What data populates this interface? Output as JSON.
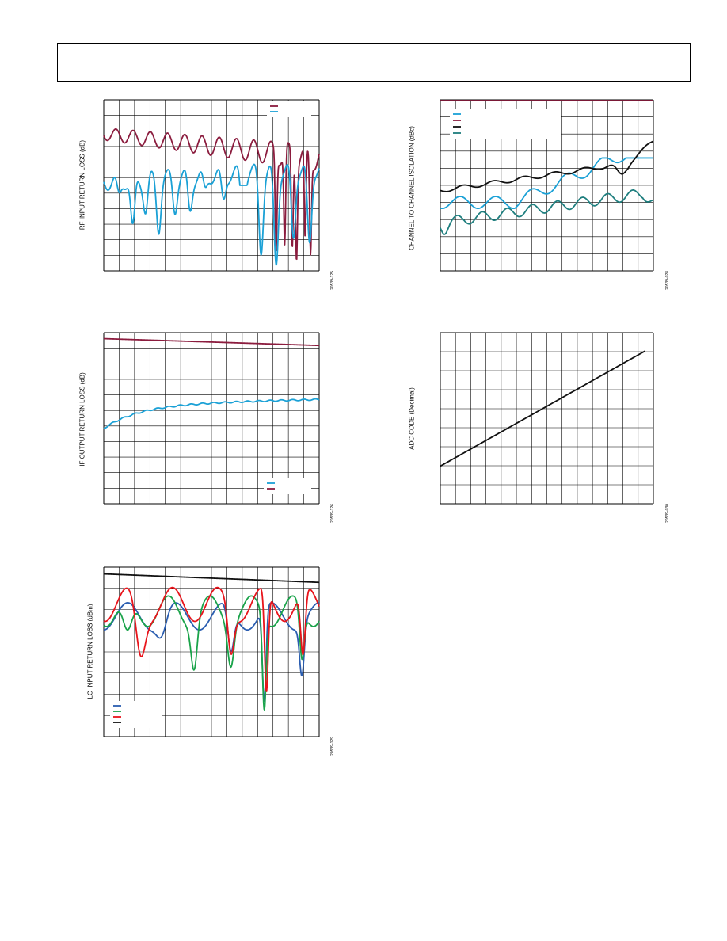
{
  "page": {
    "header": ""
  },
  "chart_data": [
    {
      "id": "rf-input-return-loss",
      "type": "line",
      "title": "",
      "ylabel": "RF INPUT RETURN LOSS (dB)",
      "figure_number": "20539-125",
      "grid": true,
      "legend_position": "top-right",
      "x": {
        "min": 0,
        "max": 1,
        "divisions": 14
      },
      "y": {
        "min": 0,
        "max": 1,
        "divisions": 11
      },
      "series": [
        {
          "color": "#8b1c3e",
          "kind": "rf-upper"
        },
        {
          "color": "#1ba1d6",
          "kind": "rf-lower"
        }
      ]
    },
    {
      "id": "channel-isolation",
      "type": "line",
      "title": "",
      "ylabel": "CHANNEL TO CHANNEL ISOLATION (dBc)",
      "figure_number": "20539-028",
      "grid": true,
      "legend_position": "top-left",
      "x": {
        "min": 0,
        "max": 1,
        "divisions": 14
      },
      "y": {
        "min": 0,
        "max": 1,
        "divisions": 10
      },
      "series": [
        {
          "color": "#1ba1d6",
          "kind": "iso-cyan"
        },
        {
          "color": "#8b1c3e",
          "kind": "iso-top"
        },
        {
          "color": "#111111",
          "kind": "iso-black"
        },
        {
          "color": "#1e7e7e",
          "kind": "iso-teal"
        }
      ]
    },
    {
      "id": "if-output-return-loss",
      "type": "line",
      "title": "",
      "ylabel": "IF OUTPUT RETURN LOSS (dB)",
      "figure_number": "20539-126",
      "grid": true,
      "legend_position": "bottom-right",
      "x": {
        "min": 0,
        "max": 1,
        "divisions": 14
      },
      "y": {
        "min": 0,
        "max": 1,
        "divisions": 11
      },
      "series": [
        {
          "color": "#1ba1d6",
          "kind": "if-lower"
        },
        {
          "color": "#8b1c3e",
          "kind": "if-upper"
        }
      ]
    },
    {
      "id": "adc-code",
      "type": "line",
      "title": "",
      "ylabel": "ADC CODE (Decimal)",
      "figure_number": "20539-030",
      "grid": true,
      "x": {
        "min": 0,
        "max": 1,
        "divisions": 14
      },
      "y": {
        "min": 0,
        "max": 1,
        "divisions": 9
      },
      "series": [
        {
          "color": "#111111",
          "kind": "adc-line"
        }
      ]
    },
    {
      "id": "lo-input-return-loss",
      "type": "line",
      "title": "",
      "ylabel": "LO INPUT RETURN LOSS (dBm)",
      "figure_number": "20539-129",
      "grid": true,
      "legend_position": "bottom-left",
      "x": {
        "min": 0,
        "max": 1,
        "divisions": 14
      },
      "y": {
        "min": 0,
        "max": 1,
        "divisions": 8
      },
      "series": [
        {
          "color": "#2a5db0",
          "kind": "lo-blue"
        },
        {
          "color": "#1aa34a",
          "kind": "lo-green"
        },
        {
          "color": "#e8141b",
          "kind": "lo-red"
        },
        {
          "color": "#111111",
          "kind": "lo-black"
        }
      ]
    }
  ]
}
